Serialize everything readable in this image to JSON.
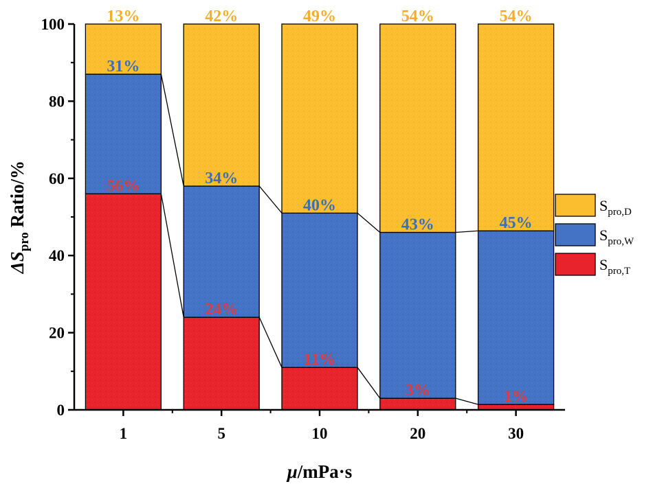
{
  "chart_data": {
    "type": "bar",
    "stacked": true,
    "title": "",
    "xlabel_symbol": "μ",
    "xlabel_unit": "/mPa·s",
    "ylabel_prefix": "ΔS",
    "ylabel_sub": "pro",
    "ylabel_suffix": " Ratio/%",
    "categories": [
      "1",
      "5",
      "10",
      "20",
      "30"
    ],
    "ylim": [
      0,
      100
    ],
    "yticks": [
      0,
      20,
      40,
      60,
      80,
      100
    ],
    "legend_position": "right",
    "series": [
      {
        "name": "S_pro,T",
        "label_main": "S",
        "label_sub": "pro,T",
        "color": "#e8232b",
        "label_color": "#e23a3f",
        "values": [
          56,
          24,
          11,
          3,
          1.4
        ],
        "labels": [
          "56%",
          "24%",
          "11%",
          "3%",
          "1%"
        ]
      },
      {
        "name": "S_pro,W",
        "label_main": "S",
        "label_sub": "pro,W",
        "color": "#4472c4",
        "label_color": "#3a6fba",
        "values": [
          31,
          34,
          40,
          43,
          45
        ],
        "labels": [
          "31%",
          "34%",
          "40%",
          "43%",
          "45%"
        ]
      },
      {
        "name": "S_pro,D",
        "label_main": "S",
        "label_sub": "pro,D",
        "color": "#fbbe2e",
        "label_color": "#f5ae2a",
        "values": [
          13,
          42,
          49,
          54,
          54
        ],
        "labels": [
          "13%",
          "42%",
          "49%",
          "54%",
          "54%"
        ]
      }
    ]
  }
}
